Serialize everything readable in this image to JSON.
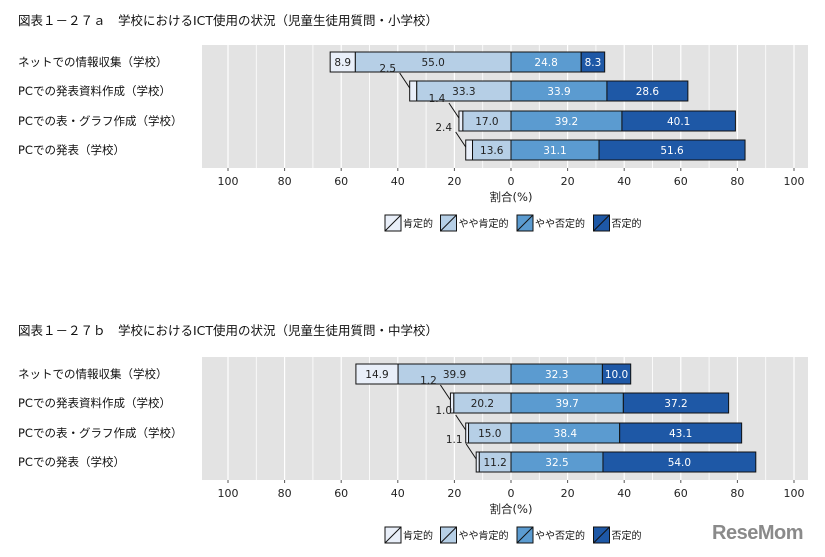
{
  "colors": [
    "#e9eff9",
    "#b6cfe6",
    "#5b9bd0",
    "#1e58a6"
  ],
  "chart_data": [
    {
      "type": "bar",
      "title": "図表１－２７ａ　学校におけるICT使用の状況（児童生徒用質問・小学校）",
      "xlabel": "割合(%)",
      "xlim": [
        -100,
        100
      ],
      "ticks": [
        "100",
        "80",
        "60",
        "40",
        "20",
        "0",
        "20",
        "40",
        "60",
        "80",
        "100"
      ],
      "legend": [
        "肯定的",
        "やや肯定的",
        "やや否定的",
        "否定的"
      ],
      "legend_position": "bottom",
      "categories": [
        "ネットでの情報収集（学校）",
        "PCでの発表資料作成（学校）",
        "PCでの表・グラフ作成（学校）",
        "PCでの発表（学校）"
      ],
      "series": [
        {
          "name": "肯定的",
          "values": [
            8.9,
            2.5,
            1.4,
            2.4
          ]
        },
        {
          "name": "やや肯定的",
          "values": [
            55.0,
            33.3,
            17.0,
            13.6
          ]
        },
        {
          "name": "やや否定的",
          "values": [
            24.8,
            33.9,
            39.2,
            31.1
          ]
        },
        {
          "name": "否定的",
          "values": [
            8.3,
            28.6,
            40.1,
            51.6
          ]
        }
      ]
    },
    {
      "type": "bar",
      "title": "図表１－２７ｂ　学校におけるICT使用の状況（児童生徒用質問・中学校）",
      "xlabel": "割合(%)",
      "xlim": [
        -100,
        100
      ],
      "ticks": [
        "100",
        "80",
        "60",
        "40",
        "20",
        "0",
        "20",
        "40",
        "60",
        "80",
        "100"
      ],
      "legend": [
        "肯定的",
        "やや肯定的",
        "やや否定的",
        "否定的"
      ],
      "legend_position": "bottom",
      "categories": [
        "ネットでの情報収集（学校）",
        "PCでの発表資料作成（学校）",
        "PCでの表・グラフ作成（学校）",
        "PCでの発表（学校）"
      ],
      "series": [
        {
          "name": "肯定的",
          "values": [
            14.9,
            1.2,
            1.0,
            1.1
          ]
        },
        {
          "name": "やや肯定的",
          "values": [
            39.9,
            20.2,
            15.0,
            11.2
          ]
        },
        {
          "name": "やや否定的",
          "values": [
            32.3,
            39.7,
            38.4,
            32.5
          ]
        },
        {
          "name": "否定的",
          "values": [
            10.0,
            37.2,
            43.1,
            54.0
          ]
        }
      ]
    }
  ],
  "logo": "ReseMom"
}
